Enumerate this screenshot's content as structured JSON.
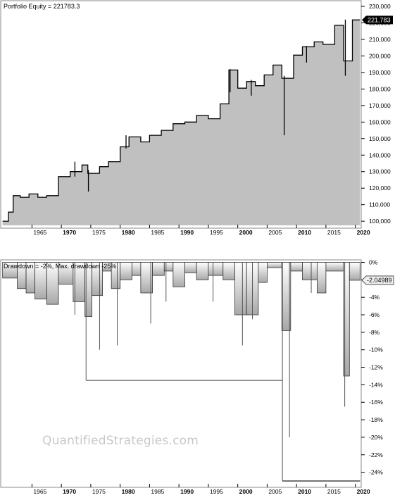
{
  "watermark": "QuantifiedStrategies.com",
  "chart_data": [
    {
      "type": "area",
      "title": "Portfolio Equity = 221783.3",
      "current_label": "221,783",
      "x_ticks": [
        {
          "label": "1965",
          "bold": false,
          "x": 1965
        },
        {
          "label": "1970",
          "bold": true,
          "x": 1970
        },
        {
          "label": "1975",
          "bold": false,
          "x": 1975
        },
        {
          "label": "1980",
          "bold": true,
          "x": 1980
        },
        {
          "label": "1985",
          "bold": false,
          "x": 1985
        },
        {
          "label": "1990",
          "bold": true,
          "x": 1990
        },
        {
          "label": "1995",
          "bold": false,
          "x": 1995
        },
        {
          "label": "2000",
          "bold": true,
          "x": 2000
        },
        {
          "label": "2005",
          "bold": false,
          "x": 2005
        },
        {
          "label": "2010",
          "bold": true,
          "x": 2010
        },
        {
          "label": "2015",
          "bold": false,
          "x": 2015
        },
        {
          "label": "2020",
          "bold": true,
          "x": 2020
        }
      ],
      "y_ticks": [
        {
          "label": "100,000",
          "v": 100000
        },
        {
          "label": "110,000",
          "v": 110000
        },
        {
          "label": "120,000",
          "v": 120000
        },
        {
          "label": "130,000",
          "v": 130000
        },
        {
          "label": "140,000",
          "v": 140000
        },
        {
          "label": "150,000",
          "v": 150000
        },
        {
          "label": "160,000",
          "v": 160000
        },
        {
          "label": "170,000",
          "v": 170000
        },
        {
          "label": "180,000",
          "v": 180000
        },
        {
          "label": "190,000",
          "v": 190000
        },
        {
          "label": "200,000",
          "v": 200000
        },
        {
          "label": "210,000",
          "v": 210000
        },
        {
          "label": "220,000",
          "v": 220000
        },
        {
          "label": "230,000",
          "v": 230000
        }
      ],
      "ylim": [
        97500,
        233000
      ],
      "xlim": [
        1959.8,
        2021.0
      ],
      "colors": {
        "fill": "#c0c0c0",
        "line": "#000000"
      },
      "x": [
        1960.0,
        1961.0,
        1961.0,
        1961.8,
        1961.8,
        1963.0,
        1963.0,
        1964.5,
        1964.5,
        1966.0,
        1966.0,
        1967.5,
        1967.5,
        1969.5,
        1969.5,
        1971.5,
        1971.5,
        1973.5,
        1973.5,
        1974.5,
        1974.5,
        1976.5,
        1976.5,
        1978.0,
        1978.0,
        1980.0,
        1980.0,
        1981.5,
        1981.5,
        1983.5,
        1983.5,
        1985.0,
        1985.0,
        1987.0,
        1987.0,
        1989.0,
        1989.0,
        1991.0,
        1991.0,
        1993.0,
        1993.0,
        1995.0,
        1995.0,
        1997.0,
        1997.0,
        1998.5,
        1998.5,
        2000.0,
        2000.0,
        2001.5,
        2001.5,
        2003.0,
        2003.0,
        2004.5,
        2004.5,
        2006.0,
        2006.0,
        2007.5,
        2007.5,
        2009.5,
        2009.5,
        2011.0,
        2011.0,
        2013.0,
        2013.0,
        2014.5,
        2014.5,
        2016.5,
        2016.5,
        2018.0,
        2018.0,
        2019.5,
        2019.5,
        2020.8
      ],
      "y": [
        100000,
        100000,
        105500,
        105500,
        115500,
        115500,
        114500,
        114500,
        116500,
        116500,
        114500,
        114500,
        115500,
        115500,
        127000,
        127000,
        130000,
        130000,
        134000,
        134000,
        129000,
        129000,
        133000,
        133000,
        136000,
        136000,
        145000,
        145000,
        151000,
        151000,
        148000,
        148000,
        152000,
        152000,
        155000,
        155000,
        159000,
        159000,
        160000,
        160000,
        164000,
        164000,
        162000,
        162000,
        171000,
        171000,
        191500,
        191500,
        180500,
        180500,
        184500,
        184500,
        182000,
        182000,
        188500,
        188500,
        194500,
        194500,
        186500,
        186500,
        200500,
        200500,
        205500,
        205500,
        208500,
        208500,
        207000,
        207000,
        218500,
        218500,
        197000,
        197000,
        221783,
        221783
      ],
      "spikes": [
        {
          "x": 1972.3,
          "low": 127000,
          "high": 136000
        },
        {
          "x": 1974.6,
          "low": 118000,
          "high": 131000
        },
        {
          "x": 1981.0,
          "low": 144000,
          "high": 152000
        },
        {
          "x": 1998.7,
          "low": 178000,
          "high": 192000
        },
        {
          "x": 2002.3,
          "low": 176000,
          "high": 185500
        },
        {
          "x": 2007.9,
          "low": 152000,
          "high": 188000
        },
        {
          "x": 2011.7,
          "low": 196000,
          "high": 206000
        },
        {
          "x": 2018.3,
          "low": 188000,
          "high": 222000
        }
      ]
    },
    {
      "type": "area",
      "title": "Drawdown = -2%, Max. drawdown -25%",
      "current_label": "-2.04989",
      "x_ticks": [
        {
          "label": "1965",
          "bold": false,
          "x": 1965
        },
        {
          "label": "1970",
          "bold": true,
          "x": 1970
        },
        {
          "label": "1975",
          "bold": false,
          "x": 1975
        },
        {
          "label": "1980",
          "bold": true,
          "x": 1980
        },
        {
          "label": "1985",
          "bold": false,
          "x": 1985
        },
        {
          "label": "1990",
          "bold": true,
          "x": 1990
        },
        {
          "label": "1995",
          "bold": false,
          "x": 1995
        },
        {
          "label": "2000",
          "bold": true,
          "x": 2000
        },
        {
          "label": "2005",
          "bold": false,
          "x": 2005
        },
        {
          "label": "2010",
          "bold": true,
          "x": 2010
        },
        {
          "label": "2015",
          "bold": false,
          "x": 2015
        },
        {
          "label": "2020",
          "bold": true,
          "x": 2020
        }
      ],
      "y_ticks": [
        {
          "label": "0%",
          "v": 0
        },
        {
          "label": "-2%",
          "v": -2
        },
        {
          "label": "-4%",
          "v": -4
        },
        {
          "label": "-6%",
          "v": -6
        },
        {
          "label": "-8%",
          "v": -8
        },
        {
          "label": "-10%",
          "v": -10
        },
        {
          "label": "-12%",
          "v": -12
        },
        {
          "label": "-14%",
          "v": -14
        },
        {
          "label": "-16%",
          "v": -16
        },
        {
          "label": "-18%",
          "v": -18
        },
        {
          "label": "-20%",
          "v": -20
        },
        {
          "label": "-22%",
          "v": -22
        },
        {
          "label": "-24%",
          "v": -24
        }
      ],
      "ylim": [
        -25.4,
        0.2
      ],
      "xlim": [
        1959.8,
        2021.0
      ],
      "max_drawdown_line": {
        "value": -25,
        "from": 2007.6,
        "to": 2020.8
      },
      "bars": [
        {
          "x0": 1960.0,
          "x1": 1962.5,
          "v": -1.8
        },
        {
          "x0": 1962.5,
          "x1": 1964.0,
          "v": -3.0
        },
        {
          "x0": 1964.0,
          "x1": 1965.5,
          "v": -3.5
        },
        {
          "x0": 1965.5,
          "x1": 1967.5,
          "v": -4.2
        },
        {
          "x0": 1967.5,
          "x1": 1969.5,
          "v": -4.8
        },
        {
          "x0": 1969.5,
          "x1": 1972.0,
          "v": -2.5
        },
        {
          "x0": 1972.0,
          "x1": 1974.0,
          "v": -4.5
        },
        {
          "x0": 1974.0,
          "x1": 1975.2,
          "v": -6.2
        },
        {
          "x0": 1975.2,
          "x1": 1977.0,
          "v": -3.8
        },
        {
          "x0": 1977.0,
          "x1": 1978.5,
          "v": -1.0
        },
        {
          "x0": 1978.5,
          "x1": 1980.0,
          "v": -3.0
        },
        {
          "x0": 1980.0,
          "x1": 1982.0,
          "v": -2.0
        },
        {
          "x0": 1982.0,
          "x1": 1983.5,
          "v": -1.5
        },
        {
          "x0": 1983.5,
          "x1": 1985.5,
          "v": -3.5
        },
        {
          "x0": 1985.5,
          "x1": 1987.5,
          "v": -1.5
        },
        {
          "x0": 1987.5,
          "x1": 1989.0,
          "v": -1.0
        },
        {
          "x0": 1989.0,
          "x1": 1991.0,
          "v": -2.8
        },
        {
          "x0": 1991.0,
          "x1": 1993.0,
          "v": -1.2
        },
        {
          "x0": 1993.0,
          "x1": 1995.0,
          "v": -2.0
        },
        {
          "x0": 1995.0,
          "x1": 1997.5,
          "v": -1.5
        },
        {
          "x0": 1997.5,
          "x1": 1999.5,
          "v": -2.0
        },
        {
          "x0": 1999.5,
          "x1": 2001.5,
          "v": -6.0
        },
        {
          "x0": 2001.5,
          "x1": 2003.5,
          "v": -6.0
        },
        {
          "x0": 2003.5,
          "x1": 2005.0,
          "v": -2.3
        },
        {
          "x0": 2005.0,
          "x1": 2007.5,
          "v": -0.6
        },
        {
          "x0": 2007.5,
          "x1": 2009.0,
          "v": -7.8
        },
        {
          "x0": 2009.0,
          "x1": 2011.0,
          "v": -1.0
        },
        {
          "x0": 2011.0,
          "x1": 2013.5,
          "v": -2.0
        },
        {
          "x0": 2013.5,
          "x1": 2015.0,
          "v": -3.5
        },
        {
          "x0": 2015.0,
          "x1": 2018.0,
          "v": -1.0
        },
        {
          "x0": 2018.0,
          "x1": 2019.0,
          "v": -13.0
        },
        {
          "x0": 2019.0,
          "x1": 2020.8,
          "v": -2.05
        }
      ],
      "spikes": [
        {
          "x": 1972.3,
          "v": -6.0
        },
        {
          "x": 1974.2,
          "v": -13.5
        },
        {
          "x": 1976.5,
          "v": -10.0
        },
        {
          "x": 1979.5,
          "v": -9.5
        },
        {
          "x": 1985.2,
          "v": -7.0
        },
        {
          "x": 1987.8,
          "v": -4.5
        },
        {
          "x": 1995.8,
          "v": -4.5
        },
        {
          "x": 2000.8,
          "v": -9.5
        },
        {
          "x": 2002.5,
          "v": -6.5
        },
        {
          "x": 2007.6,
          "v": -25.0
        },
        {
          "x": 2008.8,
          "v": -20.0
        },
        {
          "x": 2012.5,
          "v": -3.5
        },
        {
          "x": 2018.2,
          "v": -16.5
        }
      ],
      "series_regime": {
        "from": 1974.2,
        "to": 2007.6,
        "v": -13.5
      }
    }
  ]
}
